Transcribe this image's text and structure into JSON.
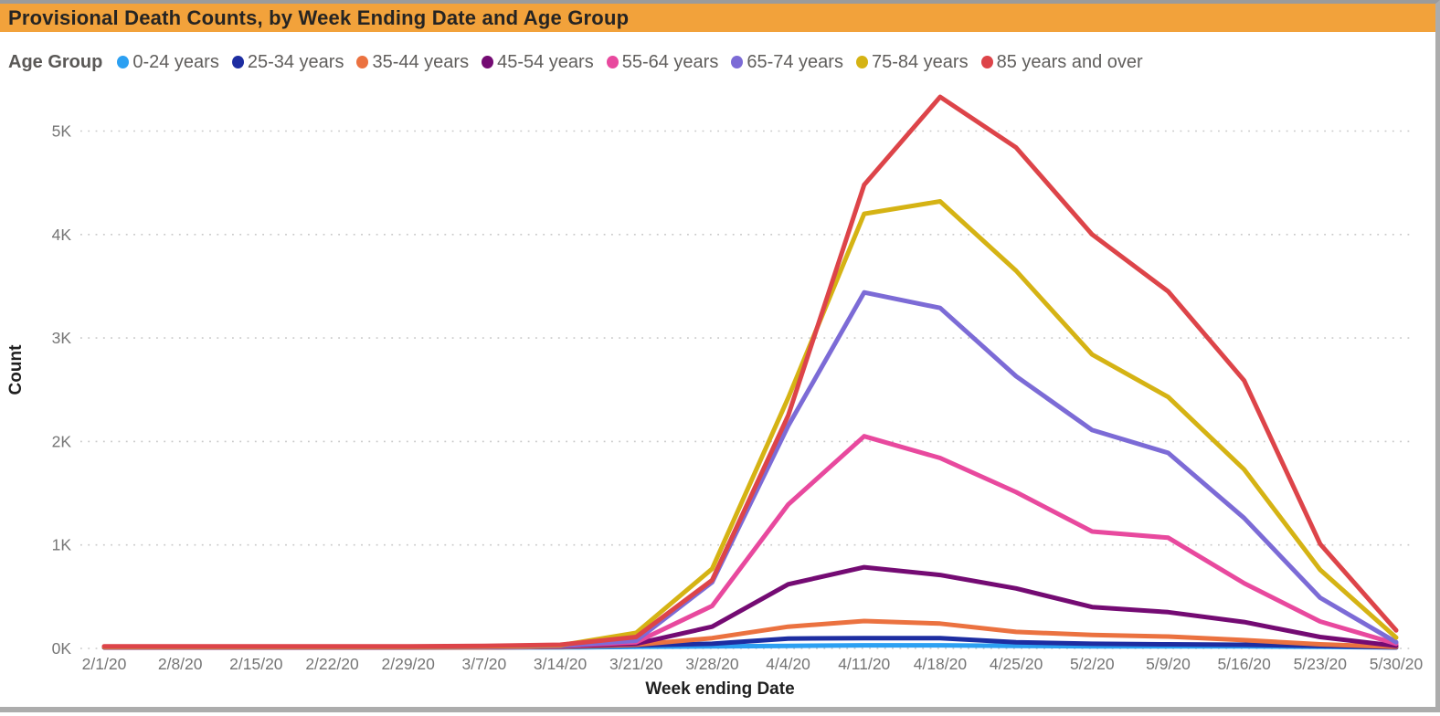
{
  "header": {
    "title": "Provisional Death Counts, by Week Ending Date and Age Group"
  },
  "legend": {
    "label": "Age Group",
    "position": "top"
  },
  "colors": {
    "header_bg": "#F2A23B",
    "header_text": "#252423",
    "grid": "#C9C9C9",
    "tick_text": "#757575",
    "axis_title_text": "#1F1F1F",
    "frame": "#ACACAC",
    "background": "#FFFFFF"
  },
  "chart_data": {
    "type": "line",
    "title": "Provisional Death Counts, by Week Ending Date and Age Group",
    "xlabel": "Week ending Date",
    "ylabel": "Count",
    "x": [
      "2/1/20",
      "2/8/20",
      "2/15/20",
      "2/22/20",
      "2/29/20",
      "3/7/20",
      "3/14/20",
      "3/21/20",
      "3/28/20",
      "4/4/20",
      "4/11/20",
      "4/18/20",
      "4/25/20",
      "5/2/20",
      "5/9/20",
      "5/16/20",
      "5/23/20",
      "5/30/20"
    ],
    "yticks": [
      {
        "value": 0,
        "label": "0K"
      },
      {
        "value": 1000,
        "label": "1K"
      },
      {
        "value": 2000,
        "label": "2K"
      },
      {
        "value": 3000,
        "label": "3K"
      },
      {
        "value": 4000,
        "label": "4K"
      },
      {
        "value": 5000,
        "label": "5K"
      }
    ],
    "ylim": [
      0,
      5500
    ],
    "grid": "horizontal-dotted",
    "legend_position": "top",
    "series": [
      {
        "name": "0-24 years",
        "color": "#2CA0F2",
        "values": [
          10,
          10,
          10,
          10,
          10,
          10,
          10,
          15,
          20,
          25,
          30,
          30,
          25,
          20,
          20,
          20,
          15,
          10
        ]
      },
      {
        "name": "25-34 years",
        "color": "#1D2DA1",
        "values": [
          10,
          10,
          10,
          10,
          10,
          10,
          15,
          30,
          45,
          95,
          100,
          100,
          60,
          45,
          40,
          35,
          25,
          10
        ]
      },
      {
        "name": "35-44 years",
        "color": "#EB7240",
        "values": [
          10,
          10,
          10,
          10,
          10,
          10,
          15,
          35,
          100,
          210,
          265,
          240,
          160,
          130,
          115,
          80,
          40,
          15
        ]
      },
      {
        "name": "45-54 years",
        "color": "#740B73",
        "values": [
          10,
          10,
          10,
          10,
          10,
          15,
          20,
          45,
          210,
          620,
          785,
          710,
          580,
          400,
          350,
          255,
          110,
          25
        ]
      },
      {
        "name": "55-64 years",
        "color": "#E8499E",
        "values": [
          15,
          15,
          15,
          15,
          15,
          15,
          25,
          60,
          410,
          1390,
          2050,
          1840,
          1510,
          1130,
          1070,
          630,
          260,
          45
        ]
      },
      {
        "name": "65-74 years",
        "color": "#7C6BD6",
        "values": [
          15,
          15,
          15,
          15,
          15,
          15,
          25,
          75,
          640,
          2150,
          3440,
          3290,
          2630,
          2110,
          1890,
          1260,
          490,
          60
        ]
      },
      {
        "name": "75-84 years",
        "color": "#D5B314",
        "values": [
          15,
          15,
          15,
          15,
          15,
          20,
          30,
          150,
          770,
          2420,
          4200,
          4320,
          3650,
          2840,
          2430,
          1730,
          760,
          105
        ]
      },
      {
        "name": "85 years and over",
        "color": "#DD4449",
        "values": [
          20,
          20,
          20,
          20,
          20,
          25,
          35,
          110,
          660,
          2250,
          4480,
          5330,
          4840,
          4000,
          3450,
          2590,
          1010,
          175
        ]
      }
    ]
  }
}
